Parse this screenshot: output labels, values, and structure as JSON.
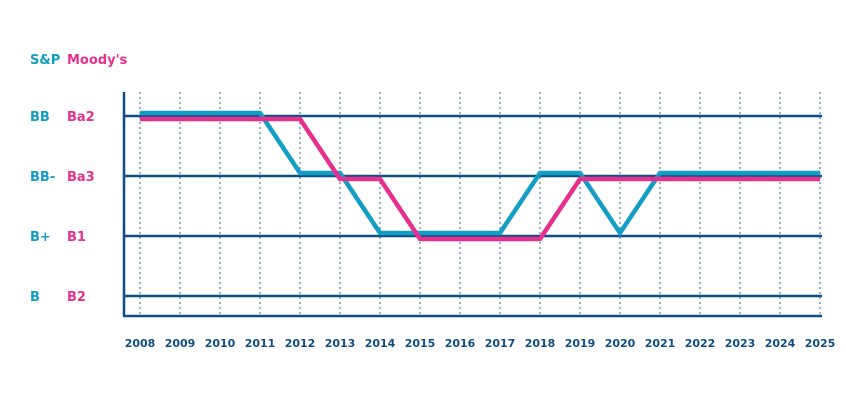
{
  "colors": {
    "sp": "#119dc4",
    "moodys": "#e5308e",
    "axis": "#0e4d86",
    "grid": "#0e4d86",
    "background": "#ffffff"
  },
  "chart_data": {
    "type": "line",
    "legend_headers": {
      "sp": "S&P",
      "moodys": "Moody's"
    },
    "rating_levels": [
      {
        "sp": "BB",
        "moodys": "Ba2",
        "level": 3
      },
      {
        "sp": "BB-",
        "moodys": "Ba3",
        "level": 2
      },
      {
        "sp": "B+",
        "moodys": "B1",
        "level": 1
      },
      {
        "sp": "B",
        "moodys": "B2",
        "level": 0
      }
    ],
    "x_categories": [
      "2008",
      "2009",
      "2010",
      "2011",
      "2012",
      "2013",
      "2014",
      "2015",
      "2016",
      "2017",
      "2018",
      "2019",
      "2020",
      "2021",
      "2022",
      "2023",
      "2024",
      "2025"
    ],
    "ylim": [
      0,
      3
    ],
    "grid": {
      "horizontal": true,
      "vertical_dashed": true
    },
    "series": [
      {
        "name": "S&P",
        "color_key": "sp",
        "points": [
          [
            2008,
            3
          ],
          [
            2011,
            3
          ],
          [
            2012,
            2
          ],
          [
            2013,
            2
          ],
          [
            2014,
            1
          ],
          [
            2017,
            1
          ],
          [
            2018,
            2
          ],
          [
            2019,
            2
          ],
          [
            2020,
            1
          ],
          [
            2021,
            2
          ],
          [
            2025,
            2
          ]
        ]
      },
      {
        "name": "Moody's",
        "color_key": "moodys",
        "points": [
          [
            2008,
            3
          ],
          [
            2012,
            3
          ],
          [
            2013,
            2
          ],
          [
            2014,
            2
          ],
          [
            2015,
            1
          ],
          [
            2018,
            1
          ],
          [
            2019,
            2
          ],
          [
            2025,
            2
          ]
        ]
      }
    ]
  }
}
